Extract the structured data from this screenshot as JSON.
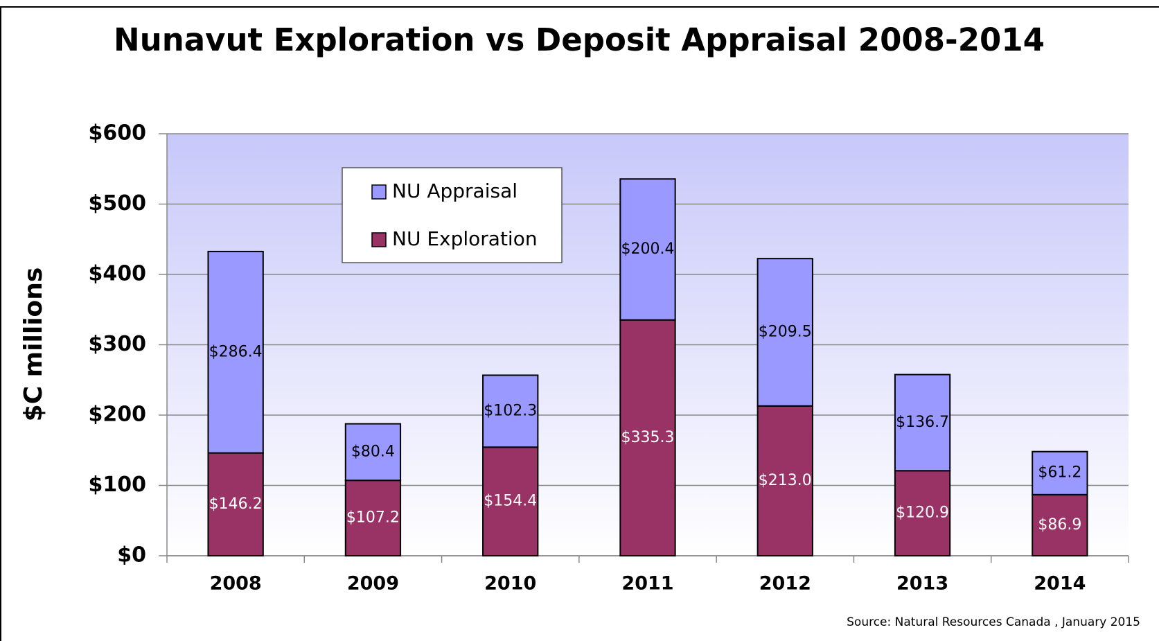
{
  "chart_data": {
    "type": "stacked_bar",
    "title": "Nunavut Exploration vs Deposit Appraisal  2008-2014",
    "y_label": "$C millions",
    "source": "Source: Natural Resources Canada , January 2015",
    "categories": [
      "2008",
      "2009",
      "2010",
      "2011",
      "2012",
      "2013",
      "2014"
    ],
    "series": [
      {
        "name": "NU Exploration",
        "color": "#993366",
        "values": [
          146.2,
          107.2,
          154.4,
          335.3,
          213.0,
          120.9,
          86.9
        ],
        "value_labels": [
          "$146.2",
          "$107.2",
          "$154.4",
          "$335.3",
          "$213.0",
          "$120.9",
          "$86.9"
        ]
      },
      {
        "name": "NU Appraisal",
        "color": "#9999ff",
        "values": [
          286.4,
          80.4,
          102.3,
          200.4,
          209.5,
          136.7,
          61.2
        ],
        "value_labels": [
          "$286.4",
          "$80.4",
          "$102.3",
          "$200.4",
          "$209.5",
          "$136.7",
          "$61.2"
        ]
      }
    ],
    "ylim": [
      0,
      600
    ],
    "yticks": [
      {
        "value": 0,
        "label": "$0"
      },
      {
        "value": 100,
        "label": "$100"
      },
      {
        "value": 200,
        "label": "$200"
      },
      {
        "value": 300,
        "label": "$300"
      },
      {
        "value": 400,
        "label": "$400"
      },
      {
        "value": 500,
        "label": "$500"
      },
      {
        "value": 600,
        "label": "$600"
      }
    ],
    "grid": true
  }
}
